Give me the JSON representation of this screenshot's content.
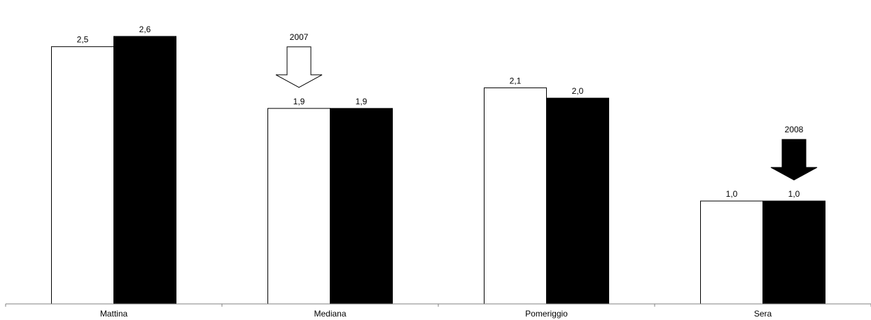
{
  "chart_data": {
    "type": "bar",
    "categories": [
      "Mattina",
      "Mediana",
      "Pomeriggio",
      "Sera"
    ],
    "series": [
      {
        "name": "2007",
        "color": "#ffffff",
        "values": [
          2.5,
          1.9,
          2.1,
          1.0
        ],
        "labels": [
          "2,5",
          "1,9",
          "2,1",
          "1,0"
        ]
      },
      {
        "name": "2008",
        "color": "#000000",
        "values": [
          2.6,
          1.9,
          2.0,
          1.0
        ],
        "labels": [
          "2,6",
          "1,9",
          "2,0",
          "1,0"
        ]
      }
    ],
    "annotations": [
      {
        "text": "2007",
        "series": "2007",
        "category": "Mediana",
        "arrow": "hollow-down"
      },
      {
        "text": "2008",
        "series": "2008",
        "category": "Sera",
        "arrow": "filled-down"
      }
    ],
    "ylim": [
      0,
      2.77
    ],
    "grid": false,
    "legend": "none"
  }
}
